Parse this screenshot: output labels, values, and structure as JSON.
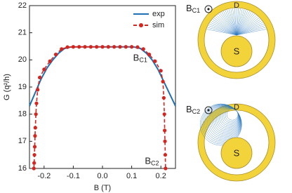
{
  "chart_data": {
    "type": "line",
    "xlabel": "B (T)",
    "ylabel": "G (q²/h)",
    "xlim": [
      -0.25,
      0.25
    ],
    "ylim": [
      16,
      22
    ],
    "xticks": [
      -0.2,
      -0.1,
      {
        "value": 0,
        "label": "0.0"
      },
      0.1,
      0.2
    ],
    "yticks": [
      16,
      17,
      18,
      19,
      20,
      21,
      22
    ],
    "legend": "upper right",
    "series": [
      {
        "name": "exp",
        "color": "#1f6fb4",
        "dashed": false,
        "markers": false,
        "x": [
          -0.25,
          -0.23,
          -0.21,
          -0.19,
          -0.17,
          -0.15,
          -0.13,
          -0.11,
          -0.09,
          -0.05,
          0,
          0.05,
          0.09,
          0.11,
          0.13,
          0.15,
          0.17,
          0.19,
          0.21,
          0.23,
          0.25
        ],
        "values": [
          18.3,
          18.8,
          19.3,
          19.7,
          20.0,
          20.25,
          20.42,
          20.47,
          20.48,
          20.48,
          20.48,
          20.48,
          20.48,
          20.47,
          20.42,
          20.25,
          20.0,
          19.65,
          19.2,
          18.75,
          18.3
        ]
      },
      {
        "name": "sim",
        "color": "#d4261f",
        "dashed": true,
        "markers": true,
        "x": [
          -0.235,
          -0.234,
          -0.233,
          -0.232,
          -0.231,
          -0.23,
          -0.228,
          -0.226,
          -0.222,
          -0.215,
          -0.2,
          -0.18,
          -0.16,
          -0.14,
          -0.12,
          -0.1,
          -0.08,
          -0.06,
          -0.04,
          -0.02,
          0,
          0.02,
          0.04,
          0.06,
          0.08,
          0.1,
          0.12,
          0.14,
          0.16,
          0.18,
          0.2,
          0.207,
          0.21,
          0.212,
          0.213,
          0.214,
          0.215,
          0.216
        ],
        "values": [
          16.0,
          16.2,
          16.5,
          16.8,
          17.2,
          17.5,
          18.0,
          18.4,
          18.9,
          19.35,
          19.65,
          19.95,
          20.2,
          20.4,
          20.47,
          20.48,
          20.48,
          20.48,
          20.48,
          20.48,
          20.48,
          20.48,
          20.48,
          20.48,
          20.48,
          20.48,
          20.47,
          20.4,
          20.2,
          19.95,
          19.6,
          19.2,
          18.6,
          18.0,
          17.4,
          17.0,
          16.5,
          16.0
        ]
      }
    ],
    "annotations": [
      {
        "base": "B",
        "sub": "C1",
        "x": 0.105,
        "y": 20.05
      },
      {
        "base": "B",
        "sub": "C2",
        "x": 0.145,
        "y": 16.25
      }
    ]
  },
  "diagrams": [
    {
      "label": {
        "base": "B",
        "sub": "C1"
      },
      "drain": "D",
      "source": "S"
    },
    {
      "label": {
        "base": "B",
        "sub": "C2"
      },
      "drain": "D",
      "source": "S"
    }
  ]
}
